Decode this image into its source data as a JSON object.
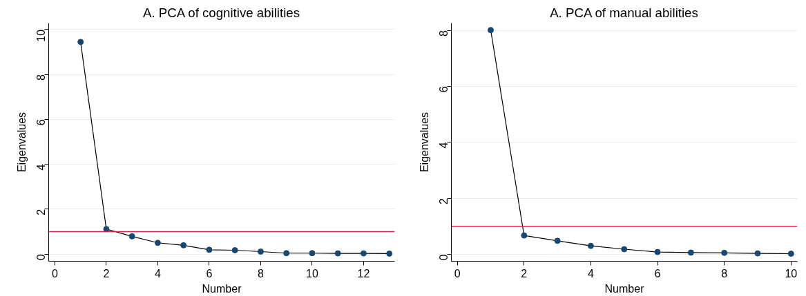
{
  "chart_data": [
    {
      "type": "line",
      "title": "A. PCA of cognitive abilities",
      "xlabel": "Number",
      "ylabel": "Eigenvalues",
      "x": [
        1,
        2,
        3,
        4,
        5,
        6,
        7,
        8,
        9,
        10,
        11,
        12,
        13
      ],
      "series": [
        {
          "color": "#1a476f",
          "values": [
            9.45,
            1.11,
            0.79,
            0.5,
            0.39,
            0.19,
            0.17,
            0.11,
            0.04,
            0.04,
            0.03,
            0.03,
            0.02
          ]
        }
      ],
      "marker": "circle",
      "line_style": "solid",
      "xlim": [
        -0.24,
        13.21
      ],
      "ylim": [
        -0.32,
        10.29
      ],
      "xticks": [
        0,
        2,
        4,
        6,
        8,
        10,
        12
      ],
      "yticks": [
        0,
        2,
        4,
        6,
        8,
        10
      ],
      "grid": "y",
      "ref_lines": [
        {
          "axis": "y",
          "value": 1,
          "label": null,
          "color": "#d62050"
        }
      ]
    },
    {
      "type": "line",
      "title": "A. PCA of manual abilities",
      "xlabel": "Number",
      "ylabel": "Eigenvalues",
      "x": [
        1,
        2,
        3,
        4,
        5,
        6,
        7,
        8,
        9,
        10
      ],
      "series": [
        {
          "color": "#1a476f",
          "values": [
            8.01,
            0.67,
            0.48,
            0.3,
            0.18,
            0.08,
            0.06,
            0.05,
            0.03,
            0.02
          ]
        }
      ],
      "marker": "circle",
      "line_style": "solid",
      "xlim": [
        -0.18,
        10.19
      ],
      "ylim": [
        -0.25,
        8.26
      ],
      "xticks": [
        0,
        2,
        4,
        6,
        8,
        10
      ],
      "yticks": [
        0,
        2,
        4,
        6,
        8
      ],
      "grid": "y",
      "ref_lines": [
        {
          "axis": "y",
          "value": 1,
          "label": null,
          "color": "#d62050"
        }
      ]
    }
  ]
}
